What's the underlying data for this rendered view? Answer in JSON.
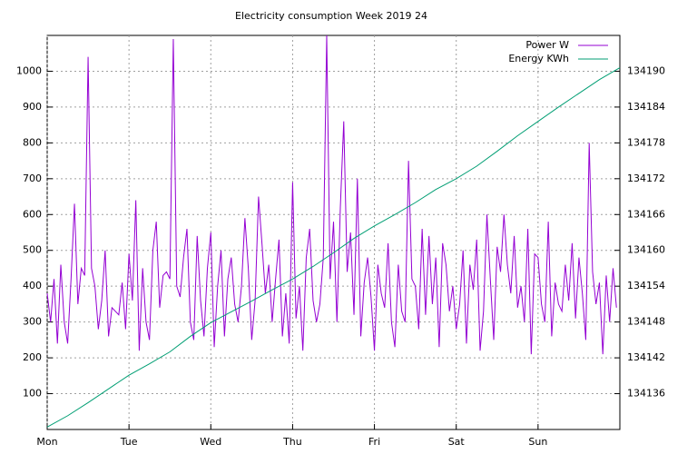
{
  "chart_data": {
    "type": "line",
    "title": "Electricity consumption Week 2019 24",
    "xlim": [
      0,
      168
    ],
    "xticks": [
      {
        "value": 0,
        "label": "Mon"
      },
      {
        "value": 24,
        "label": "Tue"
      },
      {
        "value": 48,
        "label": "Wed"
      },
      {
        "value": 72,
        "label": "Thu"
      },
      {
        "value": 96,
        "label": "Fri"
      },
      {
        "value": 120,
        "label": "Sat"
      },
      {
        "value": 144,
        "label": "Sun"
      }
    ],
    "ylim": [
      0,
      1100
    ],
    "yticks": [
      100,
      200,
      300,
      400,
      500,
      600,
      700,
      800,
      900,
      1000
    ],
    "y2lim": [
      134130,
      134196
    ],
    "y2ticks": [
      134136,
      134142,
      134148,
      134154,
      134160,
      134166,
      134172,
      134178,
      134184,
      134190
    ],
    "grid": true,
    "legend": "top-right",
    "series": [
      {
        "name": "Power W",
        "color": "#9400d3",
        "x": [
          0,
          1,
          2,
          3,
          4,
          5,
          6,
          7,
          8,
          9,
          10,
          11,
          12,
          13,
          14,
          15,
          16,
          17,
          18,
          19,
          20,
          21,
          22,
          23,
          24,
          25,
          26,
          27,
          28,
          29,
          30,
          31,
          32,
          33,
          34,
          35,
          36,
          37,
          38,
          39,
          40,
          41,
          42,
          43,
          44,
          45,
          46,
          47,
          48,
          49,
          50,
          51,
          52,
          53,
          54,
          55,
          56,
          57,
          58,
          59,
          60,
          61,
          62,
          63,
          64,
          65,
          66,
          67,
          68,
          69,
          70,
          71,
          72,
          73,
          74,
          75,
          76,
          77,
          78,
          79,
          80,
          81,
          82,
          83,
          84,
          85,
          86,
          87,
          88,
          89,
          90,
          91,
          92,
          93,
          94,
          95,
          96,
          97,
          98,
          99,
          100,
          101,
          102,
          103,
          104,
          105,
          106,
          107,
          108,
          109,
          110,
          111,
          112,
          113,
          114,
          115,
          116,
          117,
          118,
          119,
          120,
          121,
          122,
          123,
          124,
          125,
          126,
          127,
          128,
          129,
          130,
          131,
          132,
          133,
          134,
          135,
          136,
          137,
          138,
          139,
          140,
          141,
          142,
          143,
          144,
          145,
          146,
          147,
          148,
          149,
          150,
          151,
          152,
          153,
          154,
          155,
          156,
          157,
          158,
          159,
          160,
          161,
          162,
          163,
          164,
          165,
          166,
          167
        ],
        "values": [
          380,
          300,
          420,
          240,
          460,
          300,
          240,
          420,
          630,
          350,
          450,
          430,
          1040,
          450,
          400,
          280,
          360,
          500,
          260,
          340,
          330,
          320,
          410,
          280,
          490,
          360,
          640,
          220,
          450,
          300,
          250,
          500,
          580,
          340,
          430,
          440,
          420,
          1090,
          400,
          370,
          480,
          560,
          300,
          250,
          540,
          360,
          260,
          450,
          550,
          230,
          400,
          500,
          260,
          420,
          480,
          350,
          300,
          400,
          590,
          450,
          250,
          360,
          650,
          520,
          380,
          460,
          300,
          420,
          530,
          260,
          380,
          240,
          690,
          310,
          400,
          220,
          480,
          560,
          360,
          300,
          350,
          480,
          1100,
          420,
          580,
          300,
          620,
          860,
          440,
          550,
          320,
          700,
          260,
          410,
          480,
          370,
          220,
          460,
          380,
          340,
          520,
          300,
          230,
          460,
          330,
          300,
          750,
          420,
          400,
          280,
          560,
          320,
          540,
          350,
          480,
          230,
          520,
          460,
          330,
          400,
          280,
          350,
          500,
          240,
          460,
          390,
          530,
          220,
          330,
          600,
          420,
          250,
          510,
          440,
          600,
          460,
          380,
          540,
          340,
          400,
          300,
          560,
          210,
          490,
          480,
          350,
          300,
          580,
          260,
          410,
          350,
          330,
          460,
          360,
          520,
          310,
          480,
          380,
          250,
          800,
          440,
          350,
          410,
          210,
          430,
          300,
          450,
          340
        ]
      },
      {
        "name": "Energy KWh",
        "color": "#009e73",
        "axis": "y2",
        "x": [
          0,
          6,
          12,
          18,
          24,
          30,
          36,
          42,
          48,
          54,
          60,
          66,
          72,
          78,
          84,
          90,
          96,
          102,
          108,
          114,
          120,
          126,
          132,
          138,
          144,
          150,
          156,
          162,
          168
        ],
        "values": [
          134130.4,
          134132.3,
          134134.5,
          134136.8,
          134139.1,
          134141.0,
          134143.0,
          134145.6,
          134147.9,
          134149.7,
          134151.5,
          134153.4,
          134155.2,
          134157.3,
          134159.6,
          134162.0,
          134164.1,
          134166.0,
          134168.0,
          134170.2,
          134172.0,
          134174.1,
          134176.6,
          134179.2,
          134181.6,
          134184.0,
          134186.3,
          134188.6,
          134190.6
        ]
      }
    ]
  }
}
